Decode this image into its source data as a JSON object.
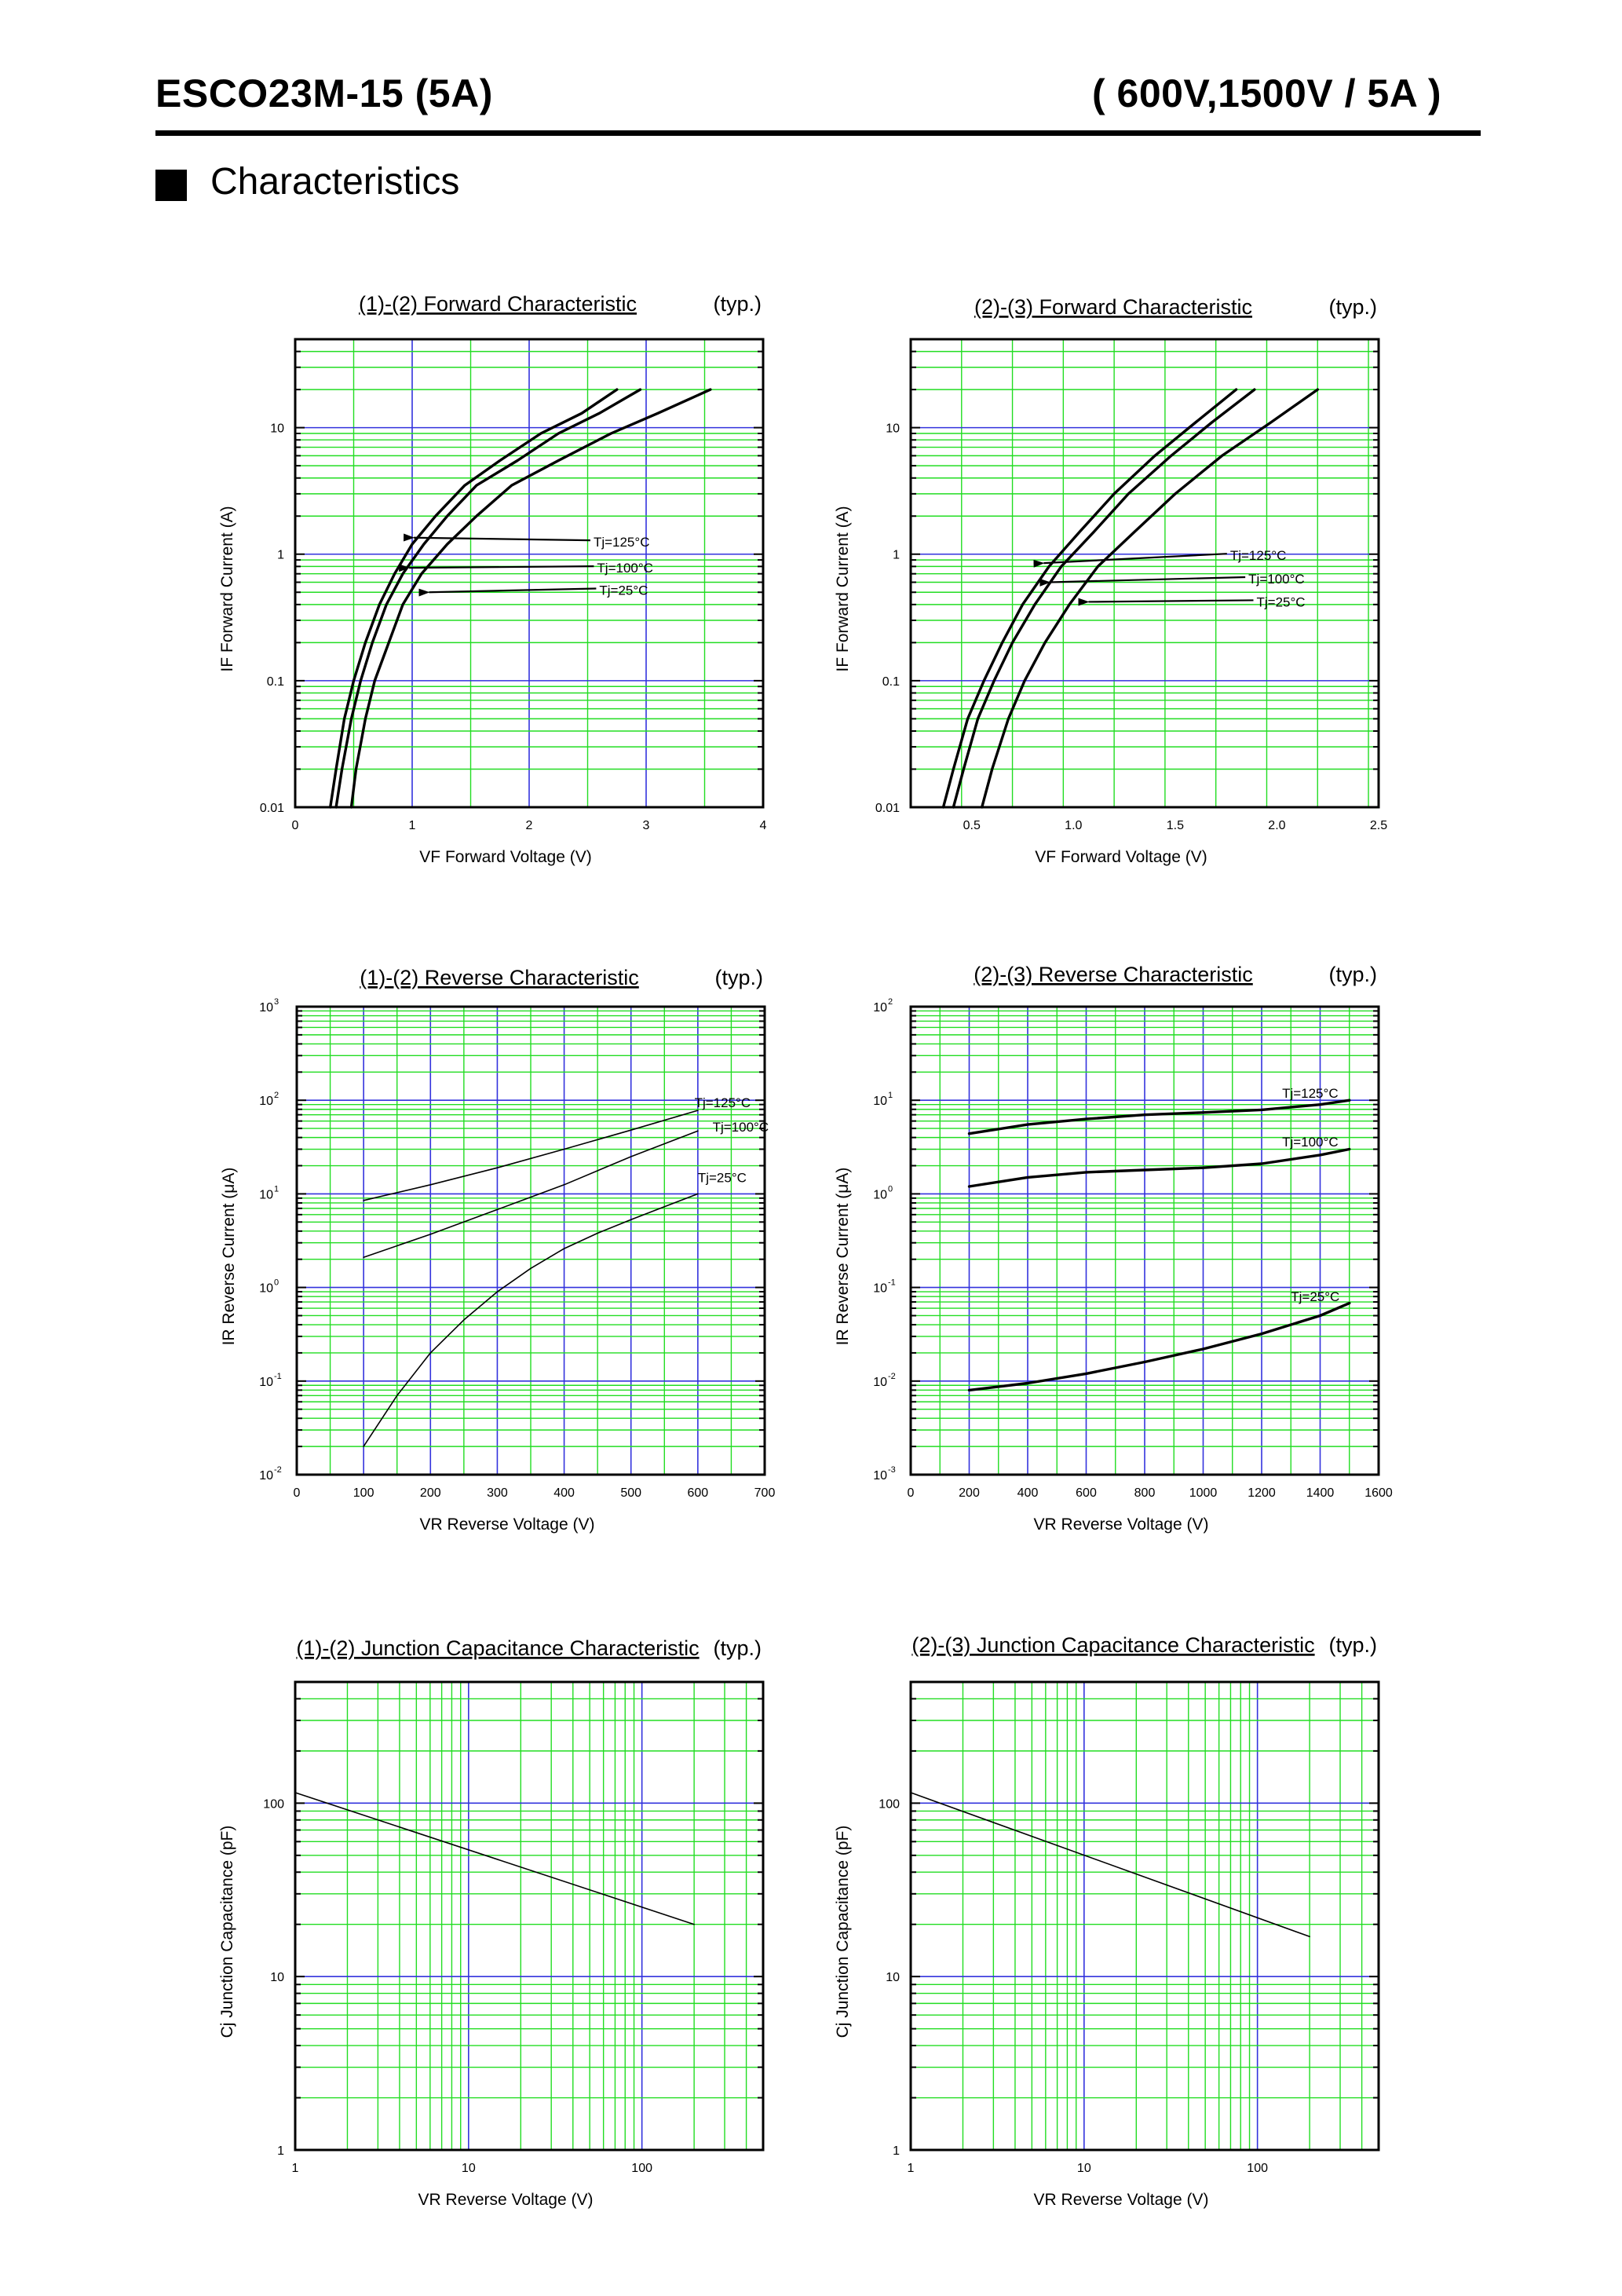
{
  "header": {
    "left": "ESCO23M-15 (5A)",
    "right": "( 600V,1500V  / 5A )"
  },
  "section": {
    "title": "Characteristics"
  },
  "colors": {
    "grid_minor": "#22dd22",
    "grid_major": "#3333dd",
    "curve": "#000000",
    "frame": "#000000"
  },
  "chart_data": [
    {
      "id": "fwd12",
      "type": "line",
      "title": "(1)-(2)  Forward Characteristic",
      "title_suffix": "(typ.)",
      "xlabel": "VF   Forward Voltage  (V)",
      "ylabel": "IF   Forward Current  (A)",
      "xlim": [
        0,
        4
      ],
      "ylim": [
        0.01,
        50
      ],
      "xscale": "linear",
      "yscale": "log",
      "xticks": [
        0,
        1,
        2,
        3,
        4
      ],
      "xtick_labels": [
        "0",
        "1",
        "2",
        "3",
        "4"
      ],
      "yticks": [
        0.01,
        0.1,
        1,
        10
      ],
      "ytick_labels": [
        "0.01",
        "0.1",
        "1",
        "10"
      ],
      "series": [
        {
          "name": "Tj=125°C",
          "x": [
            0.3,
            0.35,
            0.42,
            0.5,
            0.6,
            0.72,
            0.85,
            1.0,
            1.2,
            1.45,
            1.75,
            2.1,
            2.45,
            2.75
          ],
          "y": [
            0.01,
            0.02,
            0.05,
            0.1,
            0.2,
            0.4,
            0.7,
            1.2,
            2.0,
            3.5,
            5.5,
            9.0,
            13,
            20
          ],
          "weight": "heavy"
        },
        {
          "name": "Tj=100°C",
          "x": [
            0.35,
            0.4,
            0.48,
            0.56,
            0.66,
            0.78,
            0.92,
            1.1,
            1.3,
            1.55,
            1.9,
            2.25,
            2.6,
            2.95
          ],
          "y": [
            0.01,
            0.02,
            0.05,
            0.1,
            0.2,
            0.4,
            0.7,
            1.2,
            2.0,
            3.5,
            5.5,
            9.0,
            13,
            20
          ],
          "weight": "heavy"
        },
        {
          "name": "Tj=25°C",
          "x": [
            0.48,
            0.52,
            0.6,
            0.68,
            0.8,
            0.92,
            1.08,
            1.3,
            1.55,
            1.85,
            2.25,
            2.7,
            3.1,
            3.55
          ],
          "y": [
            0.01,
            0.02,
            0.05,
            0.1,
            0.2,
            0.4,
            0.7,
            1.2,
            2.0,
            3.5,
            5.5,
            9.0,
            13,
            20
          ],
          "weight": "heavy"
        }
      ],
      "annotations": [
        {
          "text": "Tj=125°C",
          "tx": 2.55,
          "ty": 1.25,
          "ax": 0.92,
          "ay": 1.35
        },
        {
          "text": "Tj=100°C",
          "tx": 2.58,
          "ty": 0.78,
          "ax": 0.88,
          "ay": 0.78
        },
        {
          "text": "Tj=25°C",
          "tx": 2.6,
          "ty": 0.52,
          "ax": 1.05,
          "ay": 0.5
        }
      ]
    },
    {
      "id": "fwd23",
      "type": "line",
      "title": "(2)-(3)  Forward Characteristic",
      "title_suffix": "(typ.)",
      "xlabel": "VF   Forward Voltage  (V)",
      "ylabel": "IF   Forward Current  (A)",
      "xlim": [
        0.2,
        2.5
      ],
      "ylim": [
        0.01,
        50
      ],
      "xscale": "linear",
      "yscale": "log",
      "xticks": [
        0.5,
        1.0,
        1.5,
        2.0,
        2.5
      ],
      "xtick_labels": [
        "0.5",
        "1.0",
        "1.5",
        "2.0",
        "2.5"
      ],
      "yticks": [
        0.01,
        0.1,
        1,
        10
      ],
      "ytick_labels": [
        "0.01",
        "0.1",
        "1",
        "10"
      ],
      "series": [
        {
          "name": "Tj=125°C",
          "x": [
            0.36,
            0.41,
            0.48,
            0.56,
            0.65,
            0.75,
            0.88,
            1.03,
            1.2,
            1.4,
            1.6,
            1.8
          ],
          "y": [
            0.01,
            0.02,
            0.05,
            0.1,
            0.2,
            0.4,
            0.8,
            1.5,
            3.0,
            6.0,
            11,
            20
          ],
          "weight": "heavy"
        },
        {
          "name": "Tj=100°C",
          "x": [
            0.41,
            0.46,
            0.53,
            0.61,
            0.7,
            0.81,
            0.94,
            1.1,
            1.27,
            1.48,
            1.68,
            1.89
          ],
          "y": [
            0.01,
            0.02,
            0.05,
            0.1,
            0.2,
            0.4,
            0.8,
            1.5,
            3.0,
            6.0,
            11,
            20
          ],
          "weight": "heavy"
        },
        {
          "name": "Tj=25°C",
          "x": [
            0.55,
            0.6,
            0.68,
            0.76,
            0.86,
            0.98,
            1.12,
            1.3,
            1.5,
            1.73,
            1.97,
            2.2
          ],
          "y": [
            0.01,
            0.02,
            0.05,
            0.1,
            0.2,
            0.4,
            0.8,
            1.5,
            3.0,
            6.0,
            11,
            20
          ],
          "weight": "heavy"
        }
      ],
      "annotations": [
        {
          "text": "Tj=125°C",
          "tx": 1.77,
          "ty": 0.98,
          "ax": 0.8,
          "ay": 0.85
        },
        {
          "text": "Tj=100°C",
          "tx": 1.86,
          "ty": 0.64,
          "ax": 0.83,
          "ay": 0.6
        },
        {
          "text": "Tj=25°C",
          "tx": 1.9,
          "ty": 0.42,
          "ax": 1.02,
          "ay": 0.42
        }
      ]
    },
    {
      "id": "rev12",
      "type": "line",
      "title": "(1)-(2)  Reverse Characteristic",
      "title_suffix": "(typ.)",
      "xlabel": "VR   Reverse Voltage   (V)",
      "ylabel": "IR   Reverse Current  (μA)",
      "xlim": [
        0,
        700
      ],
      "ylim": [
        0.01,
        1000
      ],
      "xscale": "linear",
      "yscale": "log",
      "xticks": [
        0,
        100,
        200,
        300,
        400,
        500,
        600,
        700
      ],
      "xtick_labels": [
        "0",
        "100",
        "200",
        "300",
        "400",
        "500",
        "600",
        "700"
      ],
      "yticks": [
        0.01,
        0.1,
        1,
        10,
        100,
        1000
      ],
      "ytick_labels": [
        "10",
        "10",
        "10",
        "10",
        "10",
        "10"
      ],
      "ytick_exponents": [
        "-2",
        "-1",
        "0",
        "1",
        "2",
        "3"
      ],
      "series": [
        {
          "name": "Tj=125°C",
          "x": [
            100,
            200,
            300,
            400,
            500,
            600
          ],
          "y": [
            8.5,
            12.5,
            19,
            30,
            48,
            78
          ],
          "weight": "thin"
        },
        {
          "name": "Tj=100°C",
          "x": [
            100,
            200,
            300,
            400,
            500,
            600
          ],
          "y": [
            2.1,
            3.7,
            6.8,
            12.5,
            25,
            47
          ],
          "weight": "thin"
        },
        {
          "name": "Tj=25°C",
          "x": [
            100,
            150,
            200,
            250,
            300,
            350,
            400,
            450,
            500,
            550,
            600
          ],
          "y": [
            0.02,
            0.07,
            0.2,
            0.45,
            0.9,
            1.6,
            2.6,
            3.8,
            5.3,
            7.3,
            10
          ],
          "weight": "thin"
        }
      ],
      "annotations": [
        {
          "text": "Tj=125°C",
          "tx": 595,
          "ty": 95
        },
        {
          "text": "Tj=100°C",
          "tx": 622,
          "ty": 52
        },
        {
          "text": "Tj=25°C",
          "tx": 600,
          "ty": 15
        }
      ]
    },
    {
      "id": "rev23",
      "type": "line",
      "title": "(2)-(3)  Reverse Characteristic",
      "title_suffix": "(typ.)",
      "xlabel": "VR   Reverse Voltage   (V)",
      "ylabel": "IR   Reverse Current  (μA)",
      "xlim": [
        0,
        1600
      ],
      "ylim": [
        0.001,
        100
      ],
      "xscale": "linear",
      "yscale": "log",
      "xticks": [
        0,
        200,
        400,
        600,
        800,
        1000,
        1200,
        1400,
        1600
      ],
      "xtick_labels": [
        "0",
        "200",
        "400",
        "600",
        "800",
        "1000",
        "1200",
        "1400",
        "1600"
      ],
      "yticks": [
        0.001,
        0.01,
        0.1,
        1,
        10,
        100
      ],
      "ytick_labels": [
        "10",
        "10",
        "10",
        "10",
        "10",
        "10"
      ],
      "ytick_exponents": [
        "-3",
        "-2",
        "-1",
        "0",
        "1",
        "2"
      ],
      "series": [
        {
          "name": "Tj=125°C",
          "x": [
            200,
            400,
            600,
            800,
            1000,
            1200,
            1400,
            1500
          ],
          "y": [
            4.4,
            5.5,
            6.3,
            7.0,
            7.4,
            7.9,
            9.0,
            10
          ],
          "weight": "heavy"
        },
        {
          "name": "Tj=100°C",
          "x": [
            200,
            400,
            600,
            800,
            1000,
            1200,
            1400,
            1500
          ],
          "y": [
            1.2,
            1.5,
            1.7,
            1.8,
            1.9,
            2.1,
            2.6,
            3.0
          ],
          "weight": "heavy"
        },
        {
          "name": "Tj=25°C",
          "x": [
            200,
            400,
            600,
            800,
            1000,
            1200,
            1400,
            1500
          ],
          "y": [
            0.008,
            0.0095,
            0.012,
            0.016,
            0.022,
            0.032,
            0.05,
            0.068
          ],
          "weight": "heavy"
        }
      ],
      "annotations": [
        {
          "text": "Tj=125°C",
          "tx": 1270,
          "ty": 12
        },
        {
          "text": "Tj=100°C",
          "tx": 1270,
          "ty": 3.6
        },
        {
          "text": "Tj=25°C",
          "tx": 1300,
          "ty": 0.08
        }
      ]
    },
    {
      "id": "cap12",
      "type": "line",
      "title": "(1)-(2)  Junction Capacitance Characteristic",
      "title_suffix": "(typ.)",
      "xlabel": "VR    Reverse Voltage   (V)",
      "ylabel": "Cj    Junction Capacitance   (pF)",
      "xlim": [
        1,
        500
      ],
      "ylim": [
        1,
        500
      ],
      "xscale": "log",
      "yscale": "log",
      "xticks": [
        1,
        10,
        100
      ],
      "xtick_labels": [
        "1",
        "10",
        "100"
      ],
      "yticks": [
        1,
        10,
        100
      ],
      "ytick_labels": [
        "1",
        "10",
        "100"
      ],
      "series": [
        {
          "name": "",
          "x": [
            1,
            200
          ],
          "y": [
            115,
            20
          ],
          "weight": "thin"
        }
      ],
      "annotations": []
    },
    {
      "id": "cap23",
      "type": "line",
      "title": "(2)-(3)  Junction Capacitance Characteristic",
      "title_suffix": "(typ.)",
      "xlabel": "VR    Reverse Voltage   (V)",
      "ylabel": "Cj    Junction Capacitance   (pF)",
      "xlim": [
        1,
        500
      ],
      "ylim": [
        1,
        500
      ],
      "xscale": "log",
      "yscale": "log",
      "xticks": [
        1,
        10,
        100
      ],
      "xtick_labels": [
        "1",
        "10",
        "100"
      ],
      "yticks": [
        1,
        10,
        100
      ],
      "ytick_labels": [
        "1",
        "10",
        "100"
      ],
      "series": [
        {
          "name": "",
          "x": [
            1,
            200
          ],
          "y": [
            115,
            17
          ],
          "weight": "thin"
        }
      ],
      "annotations": []
    }
  ]
}
